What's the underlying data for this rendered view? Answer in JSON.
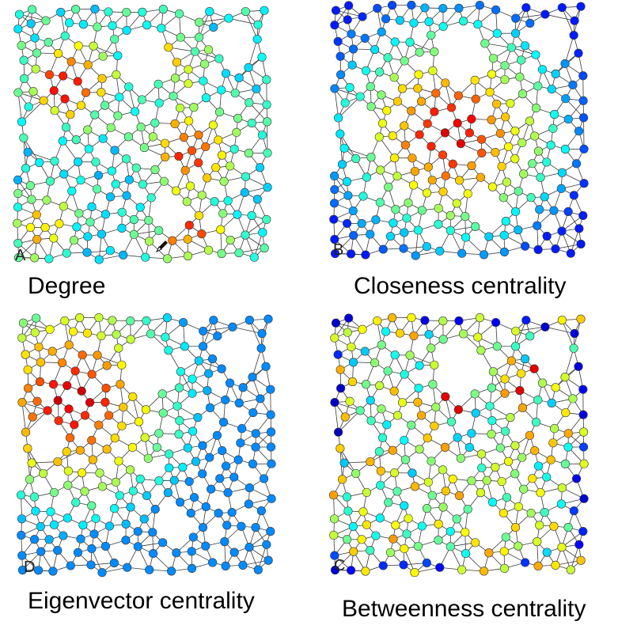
{
  "panels": [
    {
      "id": "a",
      "letter": "A",
      "caption": "Degree",
      "color_scheme": "jet",
      "hotspot": "two clusters top-left and center-right"
    },
    {
      "id": "b",
      "letter": "B",
      "caption": "Closeness centrality",
      "color_scheme": "jet",
      "hotspot": "center"
    },
    {
      "id": "d",
      "letter": "D",
      "caption": "Eigenvector centrality",
      "color_scheme": "jet",
      "hotspot": "upper-left"
    },
    {
      "id": "c",
      "letter": "C",
      "caption": "Betweenness centrality",
      "color_scheme": "jet",
      "hotspot": "scattered"
    }
  ],
  "colors": {
    "edge": "#3a3a3a",
    "node_stroke": "#3a3a3a",
    "low": "#1a1aa8",
    "high": "#d8201a"
  },
  "icons": {
    "cursor": "pen-cursor-icon"
  }
}
